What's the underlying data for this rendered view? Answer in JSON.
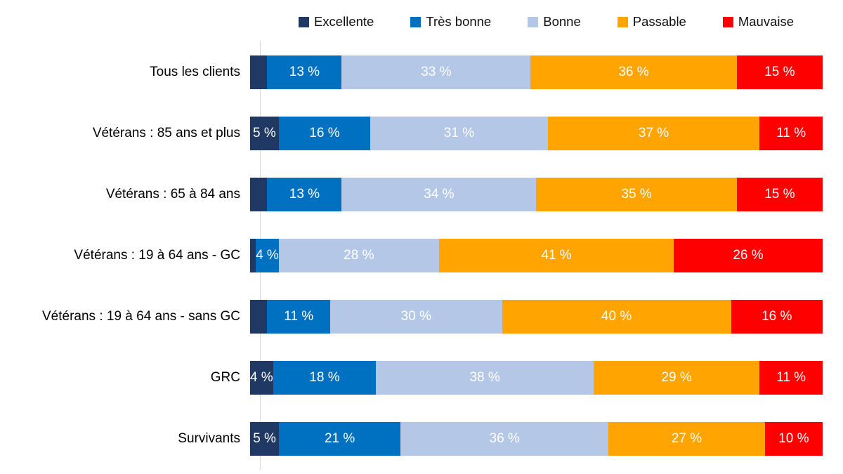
{
  "colors": {
    "excellente": "#1F3864",
    "tres_bonne": "#0070C0",
    "bonne": "#B4C7E7",
    "passable": "#FFA400",
    "mauvaise": "#FF0000",
    "axis_line": "#D9D9D9",
    "category_text": "#000000",
    "bar_label_text": "#FFFFFF"
  },
  "legend": [
    {
      "label": "Excellente",
      "color": "#1F3864",
      "key": "excellente"
    },
    {
      "label": "Très bonne",
      "color": "#0070C0",
      "key": "tres-bonne"
    },
    {
      "label": "Bonne",
      "color": "#B4C7E7",
      "key": "bonne"
    },
    {
      "label": "Passable",
      "color": "#FFA400",
      "key": "passable"
    },
    {
      "label": "Mauvaise",
      "color": "#FF0000",
      "key": "mauvaise"
    }
  ],
  "chart_data": {
    "type": "bar",
    "orientation": "horizontal",
    "stacked": true,
    "unit": "%",
    "x_axis_range": [
      0,
      100
    ],
    "grid": false,
    "legend_position": "top",
    "series_names": [
      "Excellente",
      "Très bonne",
      "Bonne",
      "Passable",
      "Mauvaise"
    ],
    "series_colors": [
      "#1F3864",
      "#0070C0",
      "#B4C7E7",
      "#FFA400",
      "#FF0000"
    ],
    "categories": [
      "Tous les clients",
      "Vétérans : 85 ans et plus",
      "Vétérans : 65 à 84 ans",
      "Vétérans : 19 à 64 ans - GC",
      "Vétérans : 19 à 64 ans - sans GC",
      "GRC",
      "Survivants"
    ],
    "rows": [
      {
        "category": "Tous les clients",
        "values": [
          3,
          13,
          33,
          36,
          15
        ],
        "labels": [
          "",
          "13 %",
          "33 %",
          "36 %",
          "15 %"
        ]
      },
      {
        "category": "Vétérans : 85 ans et plus",
        "values": [
          5,
          16,
          31,
          37,
          11
        ],
        "labels": [
          "5 %",
          "16 %",
          "31 %",
          "37 %",
          "11 %"
        ]
      },
      {
        "category": "Vétérans : 65 à 84 ans",
        "values": [
          3,
          13,
          34,
          35,
          15
        ],
        "labels": [
          "",
          "13 %",
          "34 %",
          "35 %",
          "15 %"
        ]
      },
      {
        "category": "Vétérans : 19 à 64 ans - GC",
        "values": [
          1,
          4,
          28,
          41,
          26
        ],
        "labels": [
          "",
          "4 %",
          "28 %",
          "41 %",
          "26 %"
        ]
      },
      {
        "category": "Vétérans : 19 à 64 ans - sans GC",
        "values": [
          3,
          11,
          30,
          40,
          16
        ],
        "labels": [
          "",
          "11 %",
          "30 %",
          "40 %",
          "16 %"
        ]
      },
      {
        "category": "GRC",
        "values": [
          4,
          18,
          38,
          29,
          11
        ],
        "labels": [
          "4 %",
          "18 %",
          "38 %",
          "29 %",
          "11 %"
        ]
      },
      {
        "category": "Survivants",
        "values": [
          5,
          21,
          36,
          27,
          10
        ],
        "labels": [
          "5 %",
          "21 %",
          "36 %",
          "27 %",
          "10 %"
        ]
      }
    ]
  }
}
